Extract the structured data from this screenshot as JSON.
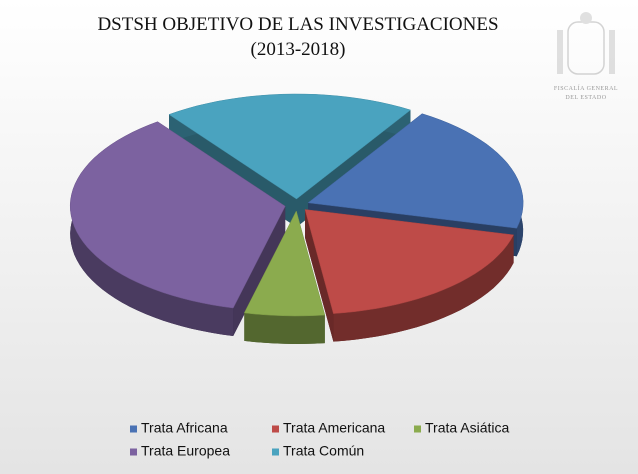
{
  "chart_data": {
    "type": "pie3d",
    "title": "DSTSH OBJETIVO DE LAS INVESTIGACIONES",
    "subtitle": "(2013-2018)",
    "logo_text": [
      "FISCALÍA GENERAL",
      "DEL ESTADO"
    ],
    "categories": [
      "Trata Africana",
      "Trata Americana",
      "Trata Asiática",
      "Trata Europea",
      "Trata Común"
    ],
    "values": [
      20,
      19,
      6,
      36,
      19
    ],
    "colors": [
      "#4a72b4",
      "#be4b48",
      "#8bab4e",
      "#7c62a0",
      "#4aa3bf"
    ]
  }
}
